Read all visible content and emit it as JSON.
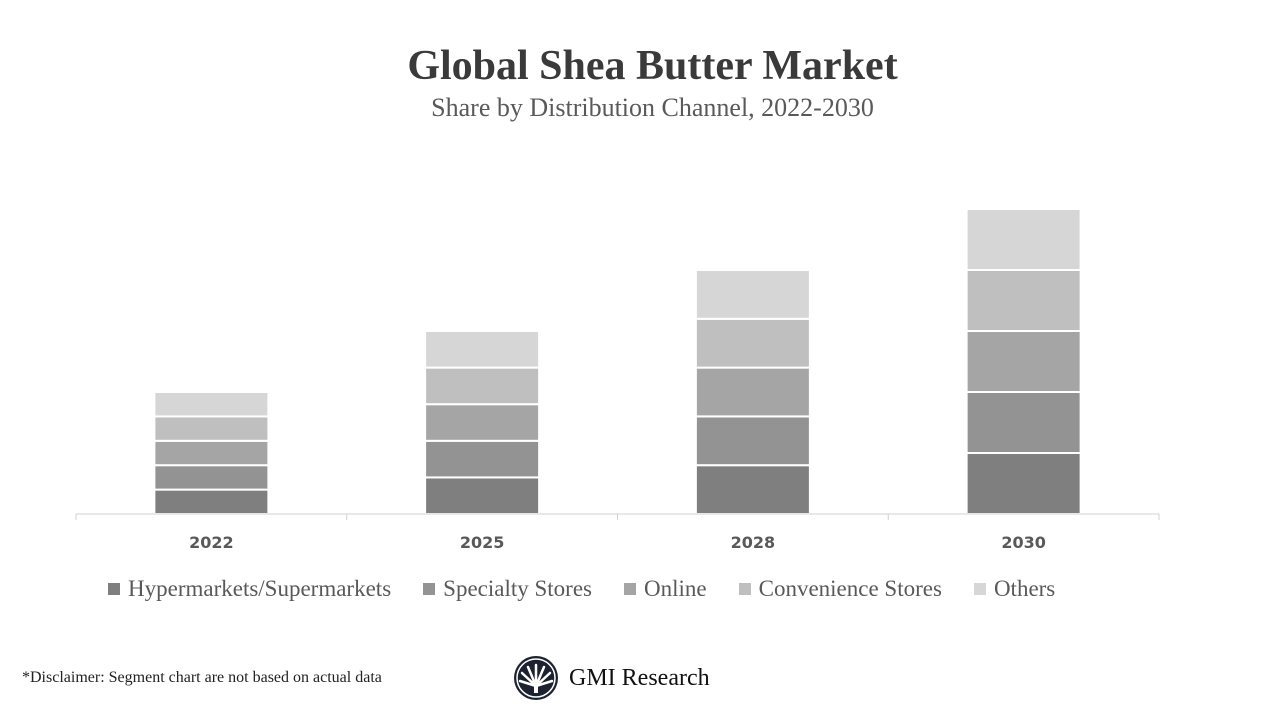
{
  "chart_data": {
    "type": "bar",
    "stacked": true,
    "title": "Global Shea Butter Market",
    "subtitle": "Share by Distribution Channel, 2022-2030",
    "categories": [
      "2022",
      "2025",
      "2028",
      "2030"
    ],
    "series": [
      {
        "name": "Hypermarkets/Supermarkets",
        "color": "#7f7f7f",
        "values": [
          2,
          3,
          4,
          5
        ]
      },
      {
        "name": "Specialty Stores",
        "color": "#939393",
        "values": [
          2,
          3,
          4,
          5
        ]
      },
      {
        "name": "Online",
        "color": "#a5a5a5",
        "values": [
          2,
          3,
          4,
          5
        ]
      },
      {
        "name": "Convenience Stores",
        "color": "#bfbfbf",
        "values": [
          2,
          3,
          4,
          5
        ]
      },
      {
        "name": "Others",
        "color": "#d6d6d6",
        "values": [
          2,
          3,
          4,
          5
        ]
      }
    ],
    "grid": false,
    "legend_position": "bottom"
  },
  "footer": {
    "disclaimer": "*Disclaimer:   Segment chart are not based on actual data",
    "brand": "GMI Research"
  }
}
